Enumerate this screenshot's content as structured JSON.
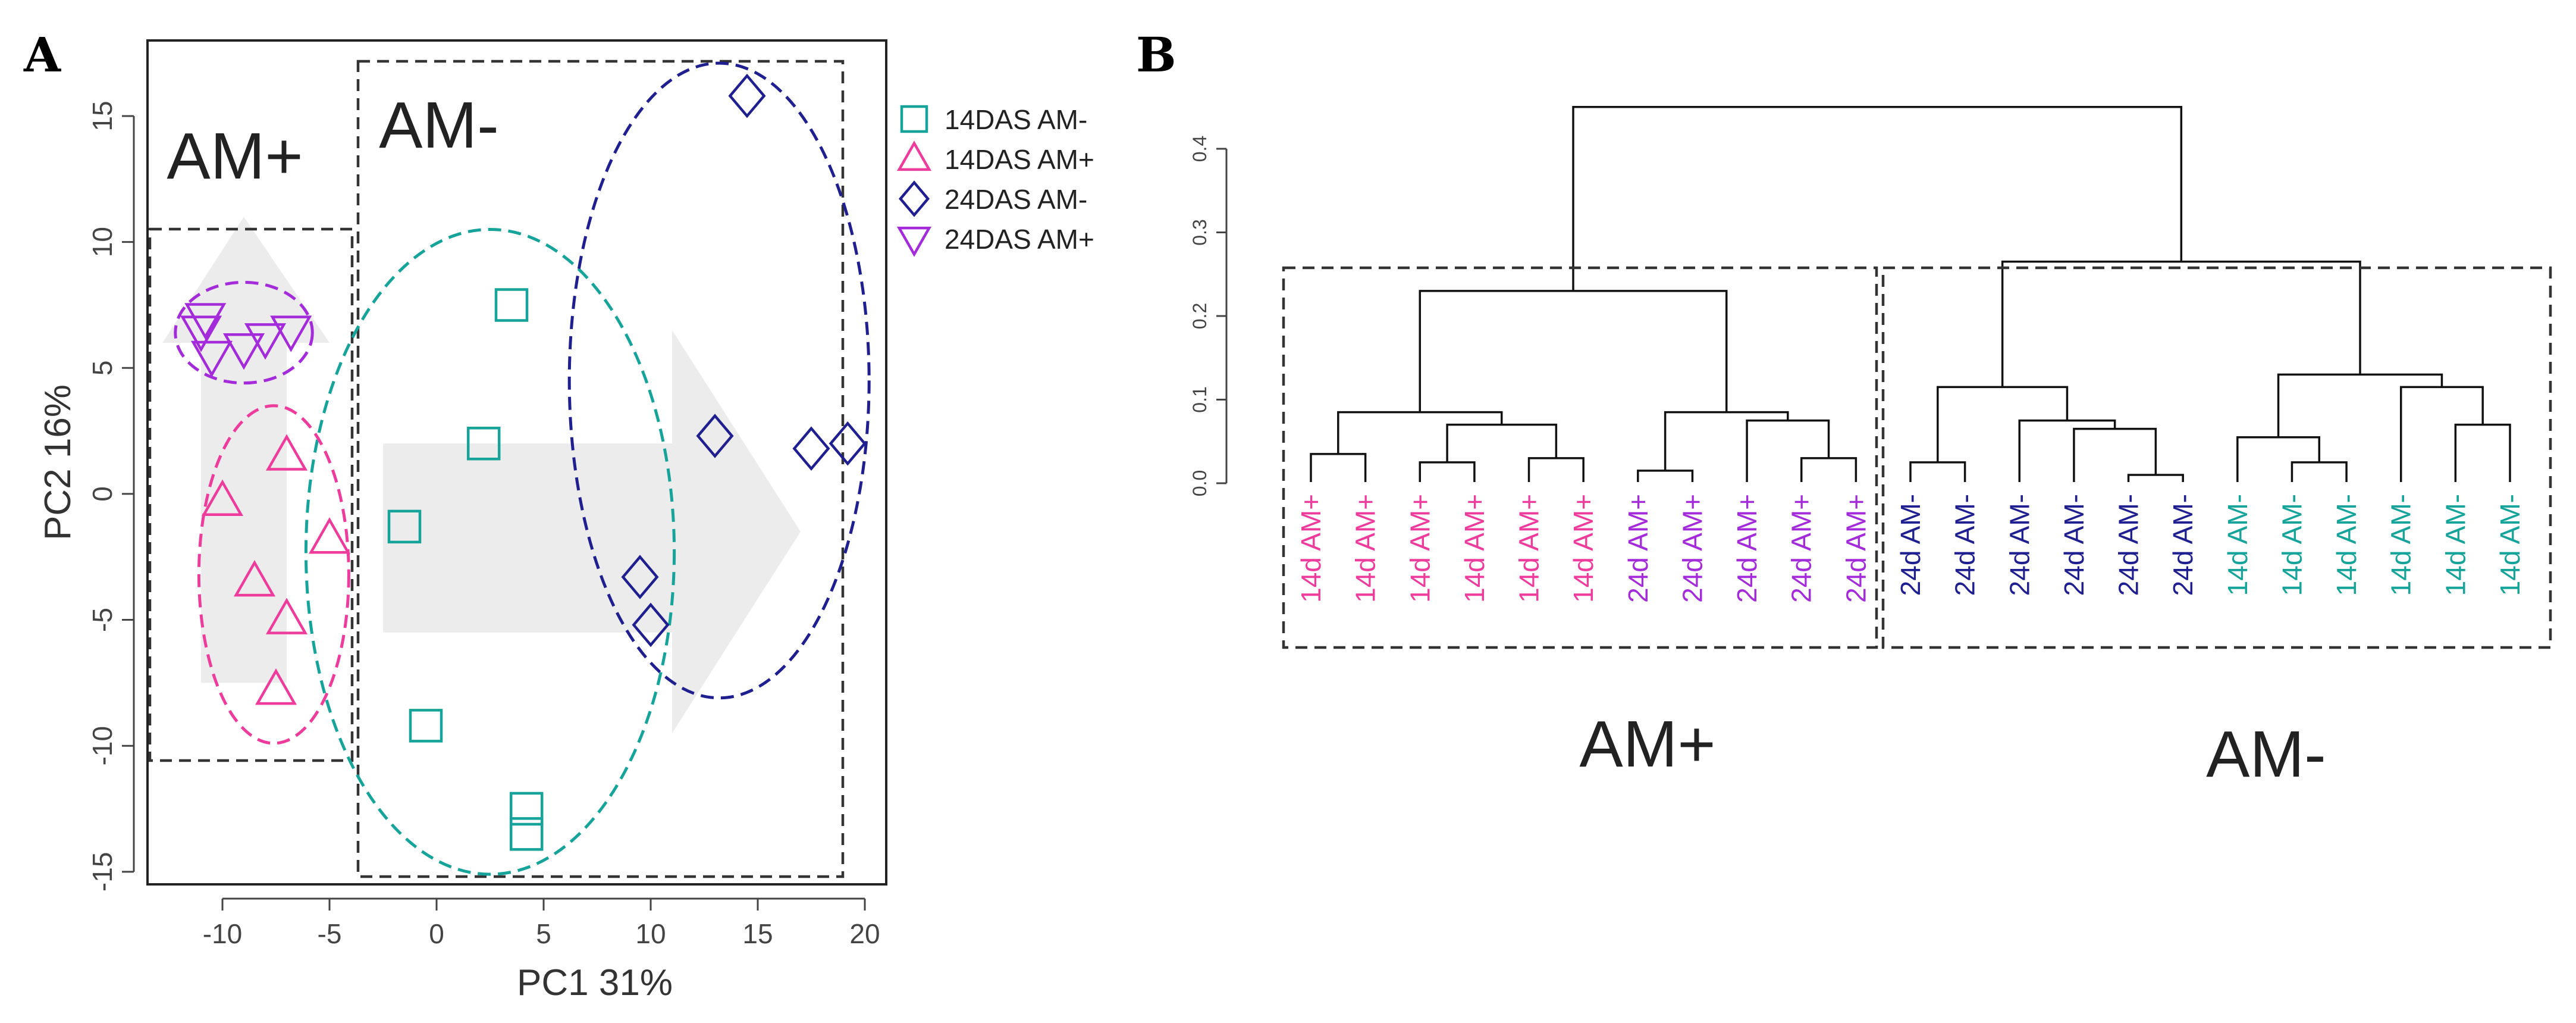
{
  "colors": {
    "teal": "#16a39a",
    "pink": "#ee3c9c",
    "navy": "#1f1f8f",
    "purple": "#a32bd9",
    "arrow": "#ececec",
    "box": "#333333"
  },
  "chart_data": [
    {
      "type": "scatter",
      "panel": "A",
      "xlabel": "PC1 31%",
      "ylabel": "PC2 16%",
      "xlim": [
        -13.5,
        21
      ],
      "ylim": [
        -15.5,
        18
      ],
      "xticks": [
        -10,
        -5,
        0,
        5,
        10,
        15,
        20
      ],
      "yticks": [
        -15,
        -10,
        -5,
        0,
        5,
        10,
        15
      ],
      "group_labels": [
        "AM+",
        "AM-"
      ],
      "legend": [
        {
          "label": "14DAS AM-",
          "marker": "square",
          "color": "teal"
        },
        {
          "label": "14DAS AM+",
          "marker": "triangle-up",
          "color": "pink"
        },
        {
          "label": "24DAS AM-",
          "marker": "diamond",
          "color": "navy"
        },
        {
          "label": "24DAS AM+",
          "marker": "triangle-down",
          "color": "purple"
        }
      ],
      "series": [
        {
          "name": "14DAS AM-",
          "marker": "square",
          "color": "teal",
          "x": [
            3.5,
            2.2,
            -1.5,
            -0.5,
            4.2,
            4.2
          ],
          "y": [
            7.5,
            2.0,
            -1.3,
            -9.2,
            -12.5,
            -13.5
          ]
        },
        {
          "name": "14DAS AM+",
          "marker": "triangle-up",
          "color": "pink",
          "x": [
            -7.0,
            -10.0,
            -5.0,
            -8.5,
            -7.0,
            -7.5
          ],
          "y": [
            1.5,
            -0.3,
            -1.8,
            -3.5,
            -5.0,
            -7.8
          ]
        },
        {
          "name": "24DAS AM-",
          "marker": "diamond",
          "color": "navy",
          "x": [
            14.5,
            13.0,
            17.5,
            19.2,
            9.5,
            10.0
          ],
          "y": [
            15.8,
            2.3,
            1.8,
            2.0,
            -3.3,
            -5.2
          ]
        },
        {
          "name": "24DAS AM+",
          "marker": "triangle-down",
          "color": "purple",
          "x": [
            -11.0,
            -10.5,
            -9.0,
            -8.0,
            -6.8,
            -10.8
          ],
          "y": [
            6.5,
            5.5,
            5.8,
            6.2,
            6.5,
            7.0
          ]
        }
      ]
    },
    {
      "type": "dendrogram",
      "panel": "B",
      "ylim": [
        0,
        0.42
      ],
      "yticks": [
        "0.0",
        "0.1",
        "0.2",
        "0.3",
        "0.4"
      ],
      "group_labels": [
        "AM+",
        "AM-"
      ],
      "leaves": [
        {
          "label": "14d AM+",
          "color": "pink"
        },
        {
          "label": "14d AM+",
          "color": "pink"
        },
        {
          "label": "14d AM+",
          "color": "pink"
        },
        {
          "label": "14d AM+",
          "color": "pink"
        },
        {
          "label": "14d AM+",
          "color": "pink"
        },
        {
          "label": "14d AM+",
          "color": "pink"
        },
        {
          "label": "24d AM+",
          "color": "purple"
        },
        {
          "label": "24d AM+",
          "color": "purple"
        },
        {
          "label": "24d AM+",
          "color": "purple"
        },
        {
          "label": "24d AM+",
          "color": "purple"
        },
        {
          "label": "24d AM+",
          "color": "purple"
        },
        {
          "label": "24d AM-",
          "color": "navy"
        },
        {
          "label": "24d AM-",
          "color": "navy"
        },
        {
          "label": "24d AM-",
          "color": "navy"
        },
        {
          "label": "24d AM-",
          "color": "navy"
        },
        {
          "label": "24d AM-",
          "color": "navy"
        },
        {
          "label": "24d AM-",
          "color": "navy"
        },
        {
          "label": "14d AM-",
          "color": "teal"
        },
        {
          "label": "14d AM-",
          "color": "teal"
        },
        {
          "label": "14d AM-",
          "color": "teal"
        },
        {
          "label": "14d AM-",
          "color": "teal"
        },
        {
          "label": "14d AM-",
          "color": "teal"
        },
        {
          "label": "14d AM-",
          "color": "teal"
        }
      ],
      "merges": [
        {
          "left": [
            0
          ],
          "right": [
            1
          ],
          "height": 0.035
        },
        {
          "left": [
            2
          ],
          "right": [
            3
          ],
          "height": 0.025
        },
        {
          "left": [
            4
          ],
          "right": [
            5
          ],
          "height": 0.03
        },
        {
          "left": [
            2,
            3
          ],
          "right": [
            4,
            5
          ],
          "height": 0.07
        },
        {
          "left": [
            0,
            1
          ],
          "right": [
            2,
            3,
            4,
            5
          ],
          "height": 0.085
        },
        {
          "left": [
            6
          ],
          "right": [
            7
          ],
          "height": 0.015
        },
        {
          "left": [
            9
          ],
          "right": [
            10
          ],
          "height": 0.03
        },
        {
          "left": [
            8
          ],
          "right": [
            9,
            10
          ],
          "height": 0.075
        },
        {
          "left": [
            6,
            7
          ],
          "right": [
            8,
            9,
            10
          ],
          "height": 0.085
        },
        {
          "left": [
            0,
            1,
            2,
            3,
            4,
            5
          ],
          "right": [
            6,
            7,
            8,
            9,
            10
          ],
          "height": 0.23
        },
        {
          "left": [
            11
          ],
          "right": [
            12
          ],
          "height": 0.025
        },
        {
          "left": [
            15
          ],
          "right": [
            16
          ],
          "height": 0.01
        },
        {
          "left": [
            14
          ],
          "right": [
            15,
            16
          ],
          "height": 0.065
        },
        {
          "left": [
            13
          ],
          "right": [
            14,
            15,
            16
          ],
          "height": 0.075
        },
        {
          "left": [
            11,
            12
          ],
          "right": [
            13,
            14,
            15,
            16
          ],
          "height": 0.115
        },
        {
          "left": [
            18
          ],
          "right": [
            19
          ],
          "height": 0.025
        },
        {
          "left": [
            17
          ],
          "right": [
            18,
            19
          ],
          "height": 0.055
        },
        {
          "left": [
            21
          ],
          "right": [
            22
          ],
          "height": 0.07
        },
        {
          "left": [
            20
          ],
          "right": [
            21,
            22
          ],
          "height": 0.115
        },
        {
          "left": [
            17,
            18,
            19
          ],
          "right": [
            20,
            21,
            22
          ],
          "height": 0.13
        },
        {
          "left": [
            11,
            12,
            13,
            14,
            15,
            16
          ],
          "right": [
            17,
            18,
            19,
            20,
            21,
            22
          ],
          "height": 0.265
        },
        {
          "left": [
            0,
            1,
            2,
            3,
            4,
            5,
            6,
            7,
            8,
            9,
            10
          ],
          "right": [
            11,
            12,
            13,
            14,
            15,
            16,
            17,
            18,
            19,
            20,
            21,
            22
          ],
          "height": 0.45
        }
      ]
    }
  ]
}
